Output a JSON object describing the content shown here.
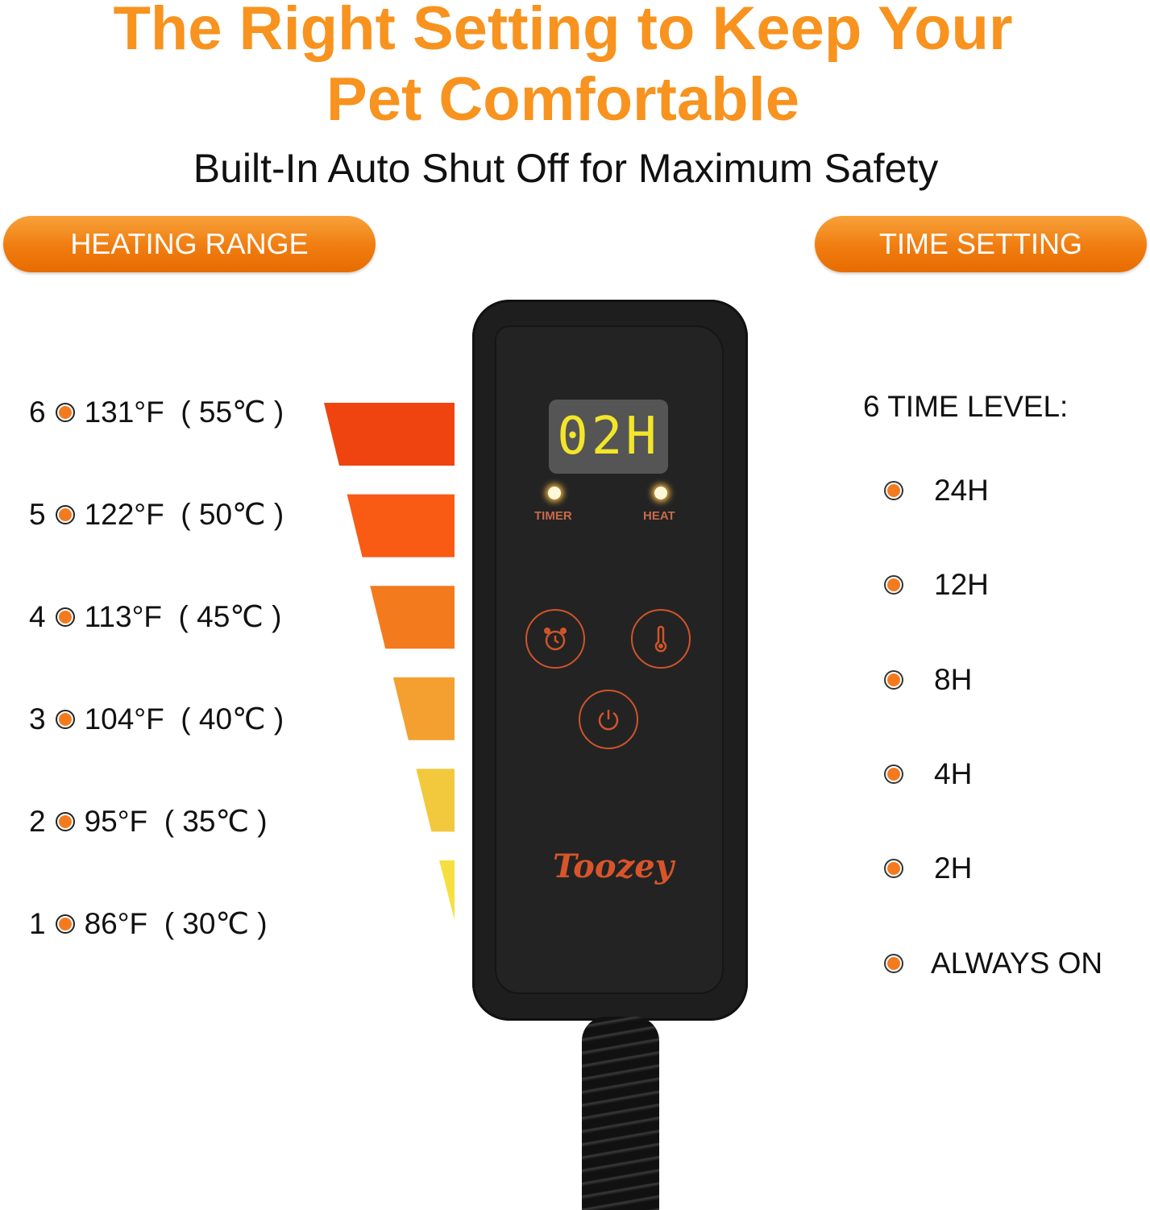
{
  "header": {
    "title_line1": "The Right Setting to Keep Your",
    "title_line2": "Pet Comfortable",
    "subtitle": "Built-In Auto Shut Off for Maximum Safety"
  },
  "heating": {
    "label": "HEATING RANGE",
    "levels": [
      {
        "level": "6",
        "temp": "131°F  ( 55℃ )",
        "color": "#ef4410"
      },
      {
        "level": "5",
        "temp": "122°F  ( 50℃ )",
        "color": "#f95a14"
      },
      {
        "level": "4",
        "temp": "113°F  ( 45℃ )",
        "color": "#f47a1e"
      },
      {
        "level": "3",
        "temp": "104°F  ( 40℃ )",
        "color": "#f3a030"
      },
      {
        "level": "2",
        "temp": "95°F  ( 35℃ )",
        "color": "#f2c83c"
      },
      {
        "level": "1",
        "temp": "86°F  ( 30℃ )",
        "color": "#f5e040"
      }
    ]
  },
  "time": {
    "label": "TIME SETTING",
    "heading": "6 TIME LEVEL:",
    "options": [
      "24H",
      "12H",
      "8H",
      "4H",
      "2H",
      "ALWAYS ON"
    ]
  },
  "controller": {
    "display": "02H",
    "timer_label": "TIMER",
    "heat_label": "HEAT",
    "brand": "Toozey"
  },
  "colors": {
    "accent": "#f7931e"
  }
}
